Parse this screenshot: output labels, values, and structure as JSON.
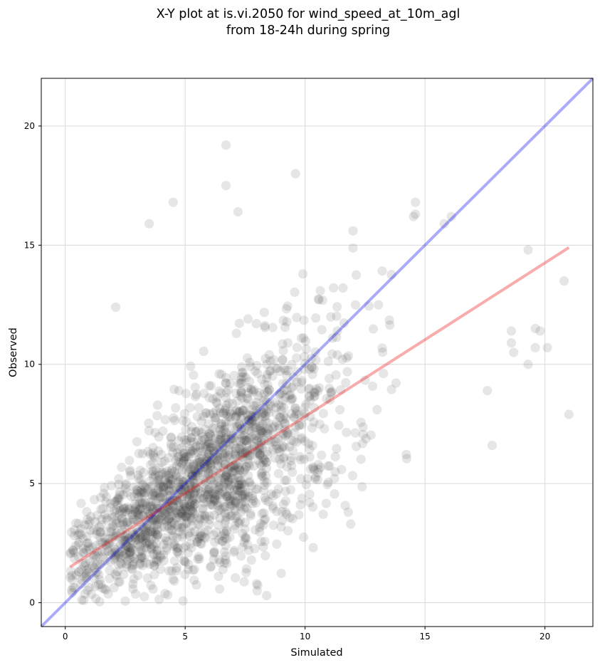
{
  "chart_data": {
    "type": "scatter",
    "title_lines": [
      "X-Y plot at is.vi.2050 for wind_speed_at_10m_agl",
      "from 18-24h during spring"
    ],
    "xlabel": "Simulated",
    "ylabel": "Observed",
    "xlim": [
      -1,
      22
    ],
    "ylim": [
      -1,
      22
    ],
    "xticks": [
      0,
      5,
      10,
      15,
      20
    ],
    "yticks": [
      0,
      5,
      10,
      15,
      20
    ],
    "grid": true,
    "colors": {
      "points": "#333333",
      "one_to_one_line": "#0000ee",
      "fit_line": "#ee1111",
      "grid": "#d9d9d9",
      "axes": "#000000"
    },
    "one_to_one_line": {
      "x": [
        -1,
        22
      ],
      "y": [
        -1,
        22
      ]
    },
    "fit_line": {
      "x": [
        0.2,
        21.0
      ],
      "y": [
        1.5,
        14.9
      ]
    },
    "notable_points": {
      "x": [
        6.7,
        6.7,
        4.5,
        7.2,
        3.5,
        9.6,
        2.1,
        17.8,
        21.0,
        18.6,
        18.6,
        11.9,
        11.8,
        20.8,
        19.3,
        8.0,
        8.4,
        12.0,
        14.6,
        14.6,
        16.1,
        15.8,
        19.6,
        20.1,
        19.8,
        19.6,
        19.3,
        18.7,
        17.6
      ],
      "y": [
        19.2,
        17.5,
        16.8,
        16.4,
        15.9,
        18.0,
        12.4,
        6.6,
        7.9,
        11.4,
        10.9,
        3.3,
        3.8,
        13.5,
        14.8,
        0.5,
        0.3,
        15.6,
        16.8,
        16.3,
        16.2,
        15.9,
        10.7,
        10.7,
        11.4,
        11.5,
        10.0,
        10.5,
        8.9
      ]
    },
    "cloud": {
      "n": 1800,
      "x_center": 6.0,
      "x_spread": 3.3,
      "x_min": 0.2,
      "x_max": 20.5,
      "y_intercept": 1.5,
      "y_slope": 0.64,
      "y_spread": 1.75
    }
  }
}
